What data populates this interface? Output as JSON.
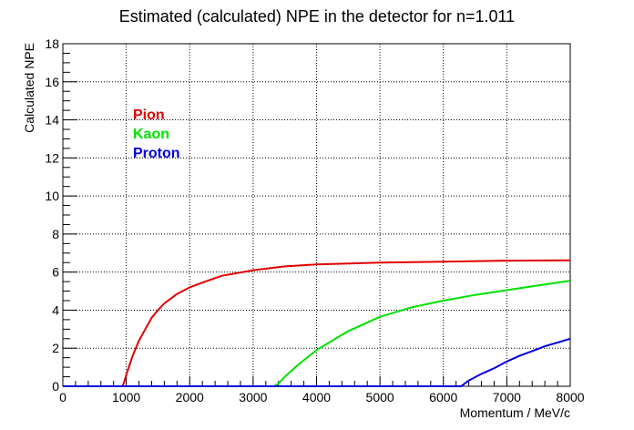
{
  "chart_data": {
    "type": "line",
    "title": "Estimated (calculated) NPE in the detector for n=1.011",
    "xlabel": "Momentum / MeV/c",
    "ylabel": "Calculated NPE",
    "xlim": [
      0,
      8000
    ],
    "ylim": [
      0,
      18
    ],
    "xticks": [
      0,
      1000,
      2000,
      3000,
      4000,
      5000,
      6000,
      7000,
      8000
    ],
    "yticks": [
      0,
      2,
      4,
      6,
      8,
      10,
      12,
      14,
      16,
      18
    ],
    "xtick_labels": [
      "0",
      "1000",
      "2000",
      "3000",
      "4000",
      "5000",
      "6000",
      "7000",
      "8000"
    ],
    "ytick_labels": [
      "0",
      "2",
      "4",
      "6",
      "8",
      "10",
      "12",
      "14",
      "16",
      "18"
    ],
    "grid": true,
    "legend_position": "top-left",
    "series": [
      {
        "name": "Pion",
        "color": "#e00000",
        "x": [
          0,
          940,
          960,
          1000,
          1050,
          1100,
          1200,
          1300,
          1400,
          1500,
          1600,
          1800,
          2000,
          2200,
          2500,
          3000,
          3500,
          4000,
          4500,
          5000,
          6000,
          7000,
          8000
        ],
        "y": [
          0,
          0,
          0.15,
          0.6,
          1.1,
          1.6,
          2.4,
          3.0,
          3.6,
          4.0,
          4.35,
          4.85,
          5.2,
          5.45,
          5.8,
          6.1,
          6.3,
          6.4,
          6.45,
          6.5,
          6.55,
          6.6,
          6.62
        ]
      },
      {
        "name": "Kaon",
        "color": "#00e000",
        "x": [
          0,
          3330,
          3400,
          3500,
          3700,
          4000,
          4500,
          5000,
          5500,
          6000,
          6500,
          7000,
          7500,
          8000
        ],
        "y": [
          0,
          0,
          0.15,
          0.5,
          1.1,
          1.9,
          2.9,
          3.65,
          4.15,
          4.5,
          4.8,
          5.05,
          5.3,
          5.55
        ]
      },
      {
        "name": "Proton",
        "color": "#0000e0",
        "x": [
          0,
          6280,
          6400,
          6600,
          6800,
          7000,
          7200,
          7400,
          7600,
          7800,
          8000
        ],
        "y": [
          0,
          0,
          0.3,
          0.65,
          0.95,
          1.3,
          1.6,
          1.85,
          2.1,
          2.3,
          2.5
        ]
      }
    ]
  }
}
